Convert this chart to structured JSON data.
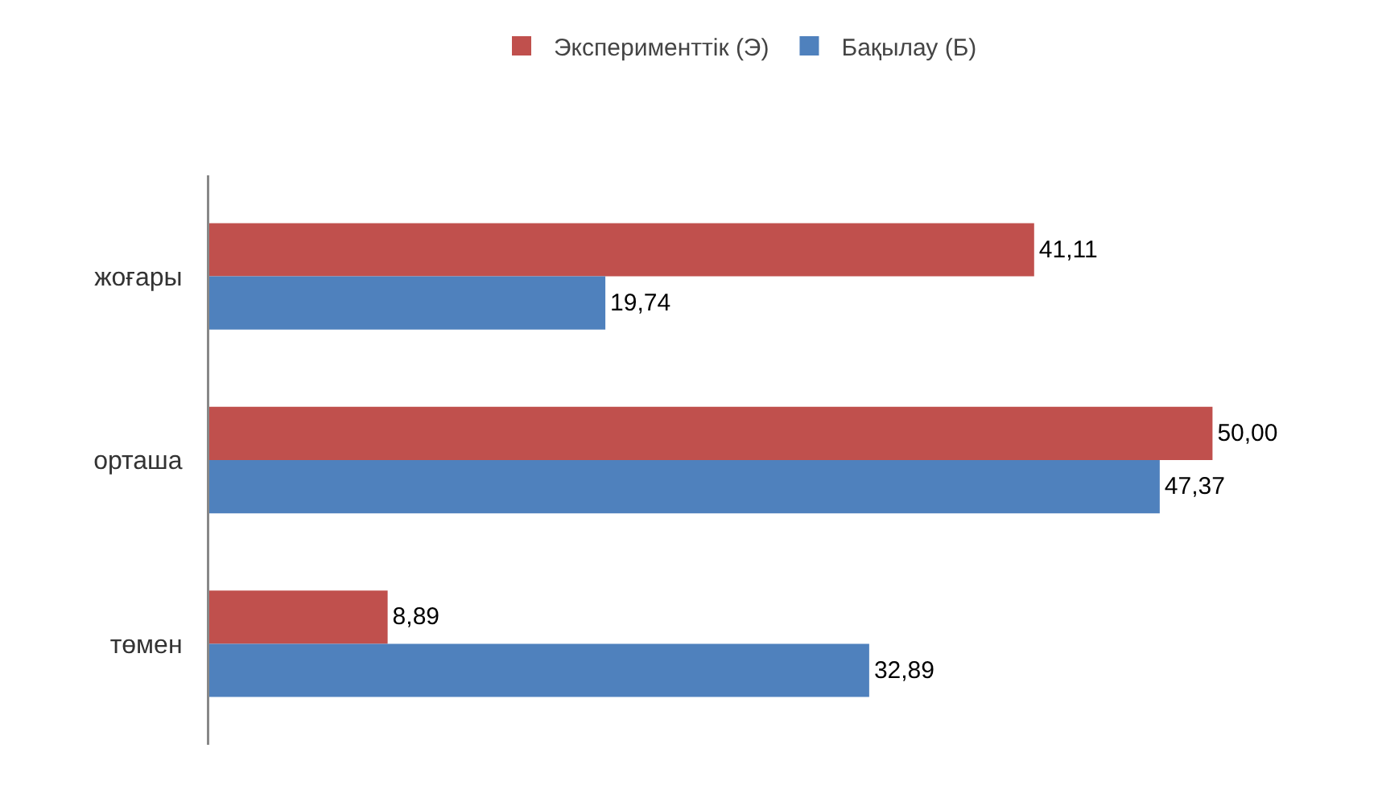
{
  "chart_data": {
    "type": "bar",
    "orientation": "horizontal",
    "categories": [
      "жоғары",
      "орташа",
      "төмен"
    ],
    "series": [
      {
        "name": "Эксперименттік (Э)",
        "color": "#c0504d",
        "values": [
          41.11,
          50.0,
          8.89
        ],
        "value_labels": [
          "41,11",
          "50,00",
          "8,89"
        ]
      },
      {
        "name": "Бақылау (Б)",
        "color": "#4f81bd",
        "values": [
          19.74,
          47.37,
          32.89
        ],
        "value_labels": [
          "19,74",
          "47,37",
          "32,89"
        ]
      }
    ],
    "legend": "top",
    "grid": false
  }
}
